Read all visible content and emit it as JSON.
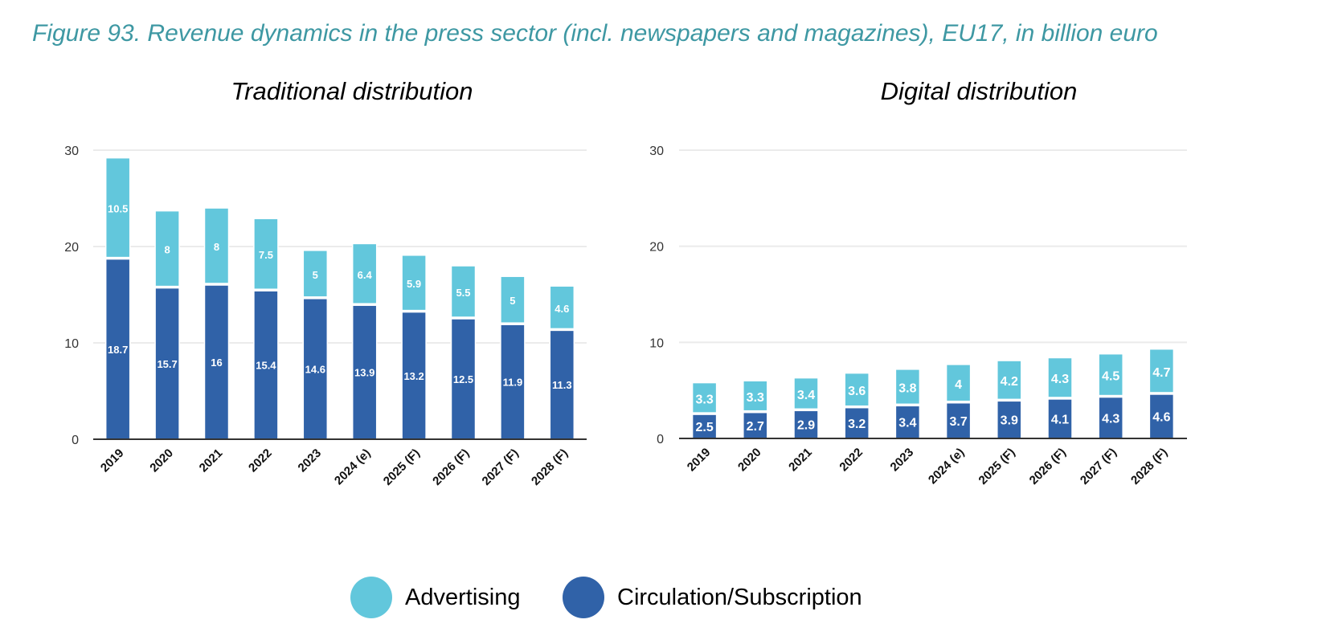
{
  "figure_title": "Figure 93. Revenue dynamics in the press sector (incl. newspapers and magazines), EU17, in billion euro",
  "colors": {
    "advertising": "#62c7dc",
    "circulation": "#3062a8",
    "title": "#3e98a3",
    "grid": "#ebebeb",
    "axis": "#333333"
  },
  "legend": [
    {
      "label": "Advertising",
      "color": "#62c7dc"
    },
    {
      "label": "Circulation/Subscription",
      "color": "#3062a8"
    }
  ],
  "chart_data": [
    {
      "type": "bar",
      "stacked": true,
      "title": "Traditional distribution",
      "xlabel": "",
      "ylabel": "",
      "ylim": [
        0,
        30
      ],
      "yticks": [
        0,
        10,
        20,
        30
      ],
      "grid": true,
      "legend_position": "bottom",
      "categories": [
        "2019",
        "2020",
        "2021",
        "2022",
        "2023",
        "2024 (e)",
        "2025 (F)",
        "2026 (F)",
        "2027 (F)",
        "2028 (F)"
      ],
      "series": [
        {
          "name": "Circulation/Subscription",
          "values": [
            18.7,
            15.7,
            16,
            15.4,
            14.6,
            13.9,
            13.2,
            12.5,
            11.9,
            11.3
          ]
        },
        {
          "name": "Advertising",
          "values": [
            10.5,
            8,
            8,
            7.5,
            5,
            6.4,
            5.9,
            5.5,
            5,
            4.6
          ]
        }
      ]
    },
    {
      "type": "bar",
      "stacked": true,
      "title": "Digital distribution",
      "xlabel": "",
      "ylabel": "",
      "ylim": [
        0,
        30
      ],
      "yticks": [
        0,
        10,
        20,
        30
      ],
      "grid": true,
      "legend_position": "bottom",
      "categories": [
        "2019",
        "2020",
        "2021",
        "2022",
        "2023",
        "2024 (e)",
        "2025 (F)",
        "2026 (F)",
        "2027 (F)",
        "2028 (F)"
      ],
      "series": [
        {
          "name": "Circulation/Subscription",
          "values": [
            2.5,
            2.7,
            2.9,
            3.2,
            3.4,
            3.7,
            3.9,
            4.1,
            4.3,
            4.6
          ]
        },
        {
          "name": "Advertising",
          "values": [
            3.3,
            3.3,
            3.4,
            3.6,
            3.8,
            4,
            4.2,
            4.3,
            4.5,
            4.7
          ]
        }
      ]
    }
  ]
}
